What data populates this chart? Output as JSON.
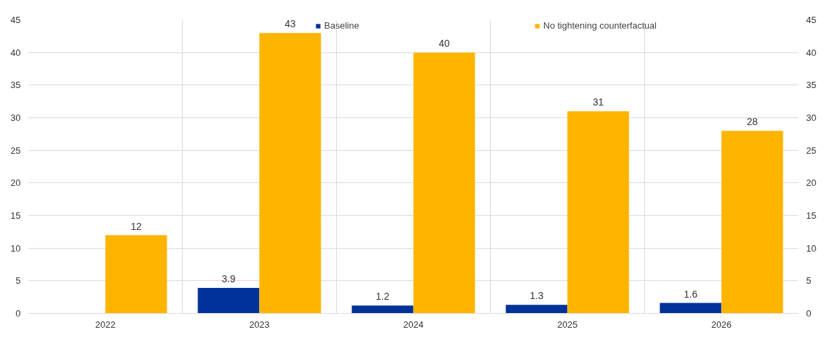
{
  "chart_data": {
    "type": "bar",
    "categories": [
      "2022",
      "2023",
      "2024",
      "2025",
      "2026"
    ],
    "series": [
      {
        "name": "Baseline",
        "color": "#003299",
        "values": [
          null,
          3.9,
          1.2,
          1.3,
          1.6
        ]
      },
      {
        "name": "No tightening counterfactual",
        "color": "#ffb400",
        "values": [
          12,
          43,
          40,
          31,
          28
        ]
      }
    ],
    "ylim": [
      0,
      45
    ],
    "yticks": [
      0,
      5,
      10,
      15,
      20,
      25,
      30,
      35,
      40,
      45
    ],
    "y2lim": [
      0,
      45
    ],
    "y2ticks": [
      0,
      5,
      10,
      15,
      20,
      25,
      30,
      35,
      40,
      45
    ],
    "data_labels": true,
    "grid": true,
    "legend": "top"
  }
}
